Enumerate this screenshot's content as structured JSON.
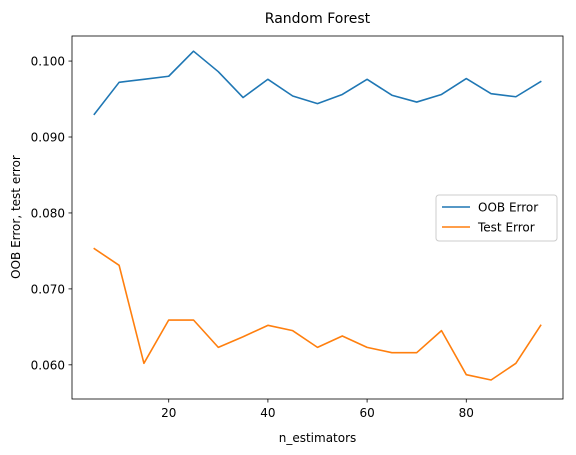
{
  "chart_data": {
    "type": "line",
    "title": "Random Forest",
    "xlabel": "n_estimators",
    "ylabel": "OOB Error, test error",
    "xlim": [
      0.5,
      99.5
    ],
    "ylim": [
      0.0555,
      0.1033
    ],
    "x_ticks": [
      20,
      40,
      60,
      80
    ],
    "y_ticks": [
      0.06,
      0.07,
      0.08,
      0.09,
      0.1
    ],
    "x_tick_labels": [
      "20",
      "40",
      "60",
      "80"
    ],
    "y_tick_labels": [
      "0.060",
      "0.070",
      "0.080",
      "0.090",
      "0.100"
    ],
    "grid": false,
    "legend_position": "center-right",
    "x": [
      5,
      10,
      15,
      20,
      25,
      30,
      35,
      40,
      45,
      50,
      55,
      60,
      65,
      70,
      75,
      80,
      85,
      90,
      95
    ],
    "series": [
      {
        "name": "OOB Error",
        "color": "#1f77b4",
        "values": [
          0.093,
          0.0972,
          0.0976,
          0.098,
          0.1013,
          0.0986,
          0.0952,
          0.0976,
          0.0954,
          0.0944,
          0.0956,
          0.0976,
          0.0955,
          0.0946,
          0.0956,
          0.0977,
          0.0957,
          0.0953,
          0.0973
        ]
      },
      {
        "name": "Test Error",
        "color": "#ff7f0e",
        "values": [
          0.0753,
          0.0731,
          0.0602,
          0.0659,
          0.0659,
          0.0623,
          0.0637,
          0.0652,
          0.0645,
          0.0623,
          0.0638,
          0.0623,
          0.0616,
          0.0616,
          0.0645,
          0.0587,
          0.058,
          0.0602,
          0.0652
        ]
      }
    ]
  }
}
